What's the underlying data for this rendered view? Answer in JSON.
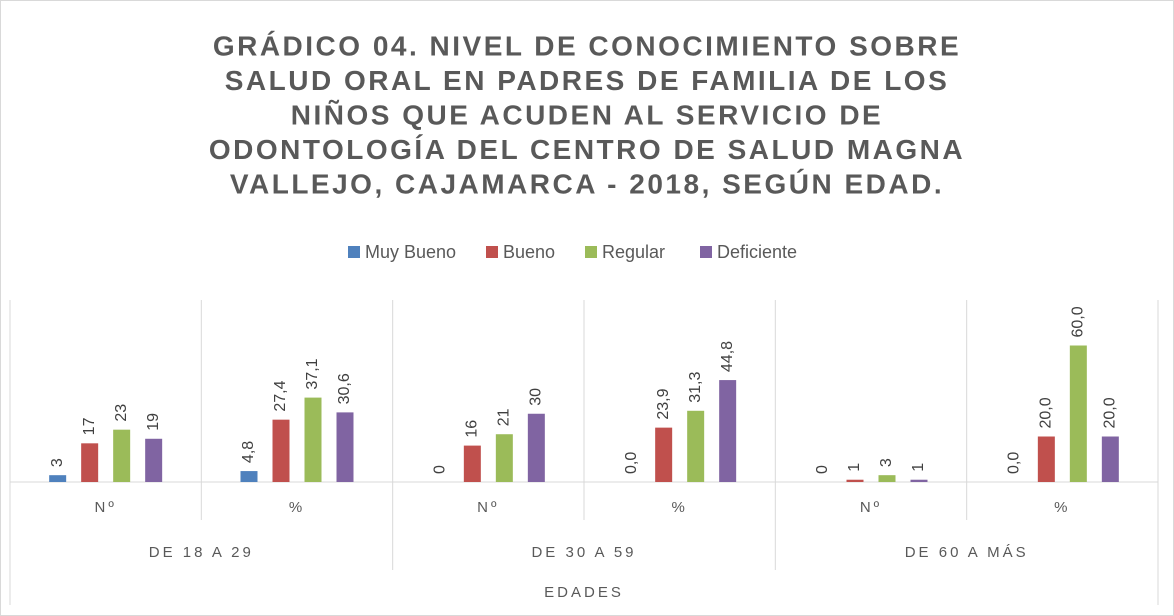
{
  "chart_data": {
    "type": "bar",
    "title": [
      "GRÁDICO 04. NIVEL DE CONOCIMIENTO SOBRE",
      "SALUD ORAL EN PADRES DE FAMILIA DE LOS",
      "NIÑOS QUE ACUDEN AL SERVICIO DE",
      "ODONTOLOGÍA DEL CENTRO DE SALUD MAGNA",
      "VALLEJO, CAJAMARCA - 2018, SEGÚN EDAD."
    ],
    "categories": [
      "Nº",
      "%",
      "Nº",
      "%",
      "Nº",
      "%"
    ],
    "groups": [
      "DE 18 A 29",
      "DE 30 A 59",
      "DE 60 A MÁS"
    ],
    "x_label": "EDADES",
    "series": [
      {
        "name": "Muy Bueno",
        "color": "#4f81bd",
        "values": [
          3,
          4.8,
          0,
          0.0,
          0,
          0.0
        ],
        "value_labels": [
          "3",
          "4,8",
          "0",
          "0,0",
          "0",
          "0,0"
        ]
      },
      {
        "name": "Bueno",
        "color": "#c0504d",
        "values": [
          17,
          27.4,
          16,
          23.9,
          1,
          20.0
        ],
        "value_labels": [
          "17",
          "27,4",
          "16",
          "23,9",
          "1",
          "20,0"
        ]
      },
      {
        "name": "Regular",
        "color": "#9bbb59",
        "values": [
          23,
          37.1,
          21,
          31.3,
          3,
          60.0
        ],
        "value_labels": [
          "23",
          "37,1",
          "21",
          "31,3",
          "3",
          "60,0"
        ]
      },
      {
        "name": "Deficiente",
        "color": "#8064a2",
        "values": [
          19,
          30.6,
          30,
          44.8,
          1,
          20.0
        ],
        "value_labels": [
          "19",
          "30,6",
          "30",
          "44,8",
          "1",
          "20,0"
        ]
      }
    ],
    "ylim": [
      0,
      80
    ],
    "legend": "top"
  }
}
